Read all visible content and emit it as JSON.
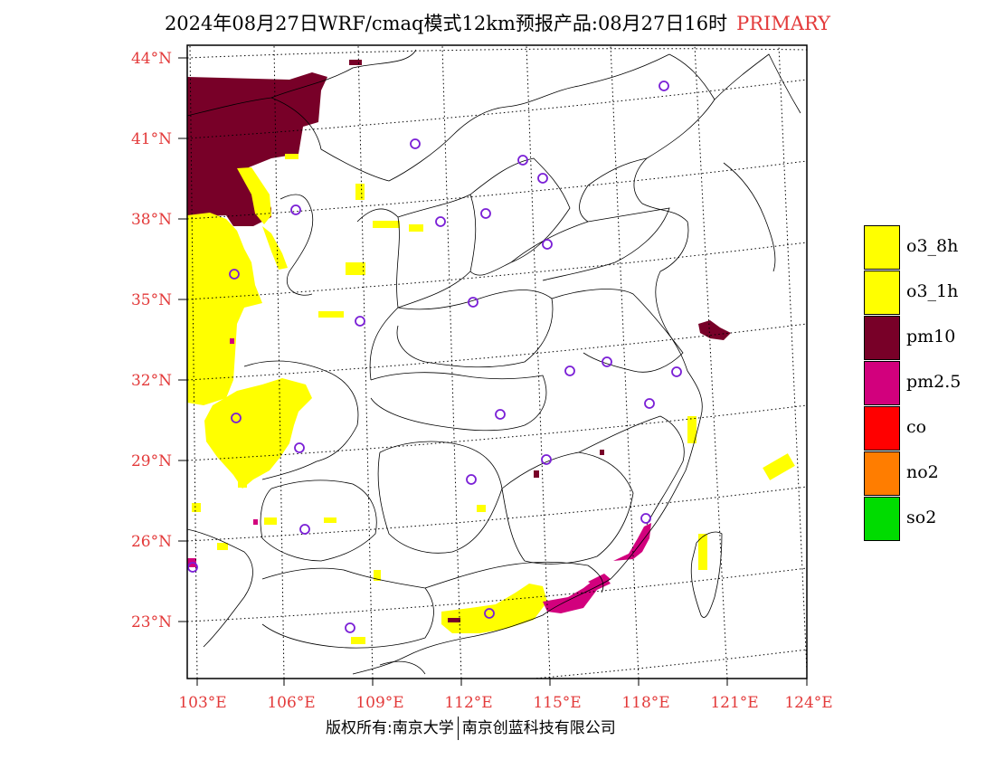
{
  "title": {
    "main": "2024年08月27日WRF/cmaq模式12km预报产品:08月27日16时",
    "tag": "PRIMARY"
  },
  "axes": {
    "lat_labels": [
      "44°N",
      "41°N",
      "38°N",
      "35°N",
      "32°N",
      "29°N",
      "26°N",
      "23°N"
    ],
    "lon_labels": [
      "103°E",
      "106°E",
      "109°E",
      "112°E",
      "115°E",
      "118°E",
      "121°E",
      "124°E"
    ],
    "label_color": "#e33a3a"
  },
  "legend": {
    "items": [
      {
        "label": "o3_8h",
        "color": "#ffff00"
      },
      {
        "label": "o3_1h",
        "color": "#ffff00"
      },
      {
        "label": "pm10",
        "color": "#780028"
      },
      {
        "label": "pm2.5",
        "color": "#d2007d"
      },
      {
        "label": "co",
        "color": "#ff0000"
      },
      {
        "label": "no2",
        "color": "#ff7d00"
      },
      {
        "label": "so2",
        "color": "#00dc00"
      }
    ]
  },
  "footer": {
    "left": "版权所有:南京大学",
    "right": "南京创蓝科技有限公司"
  },
  "map": {
    "station_marker_icon": "circle-marker-icon",
    "station_marker_color": "#7a1fd6"
  }
}
